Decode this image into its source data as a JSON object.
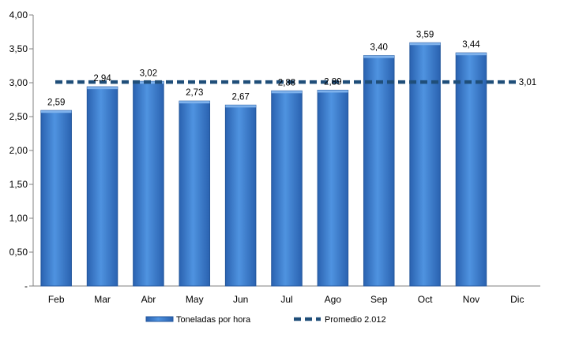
{
  "chart_data": {
    "type": "bar",
    "categories": [
      "Feb",
      "Mar",
      "Abr",
      "May",
      "Jun",
      "Jul",
      "Ago",
      "Sep",
      "Oct",
      "Nov",
      "Dic"
    ],
    "series": [
      {
        "name": "Toneladas por hora",
        "type": "bar",
        "values": [
          2.59,
          2.94,
          3.02,
          2.73,
          2.67,
          2.88,
          2.89,
          3.4,
          3.59,
          3.44,
          null
        ],
        "value_labels": [
          "2,59",
          "2,94",
          "3,02",
          "2,73",
          "2,67",
          "2,88",
          "2,89",
          "3,40",
          "3,59",
          "3,44",
          ""
        ],
        "color": "#3e7fd0"
      },
      {
        "name": "Promedio 2.012",
        "type": "line",
        "style": "dashed",
        "value": 3.01,
        "value_label": "3,01",
        "color": "#1f4e79"
      }
    ],
    "title": "",
    "xlabel": "",
    "ylabel": "",
    "ylim": [
      0,
      4
    ],
    "y_ticks": [
      0,
      0.5,
      1.0,
      1.5,
      2.0,
      2.5,
      3.0,
      3.5,
      4.0
    ],
    "y_tick_labels": [
      "-",
      "0,50",
      "1,00",
      "1,50",
      "2,00",
      "2,50",
      "3,00",
      "3,50",
      "4,00"
    ],
    "grid": false,
    "legend_position": "bottom"
  }
}
